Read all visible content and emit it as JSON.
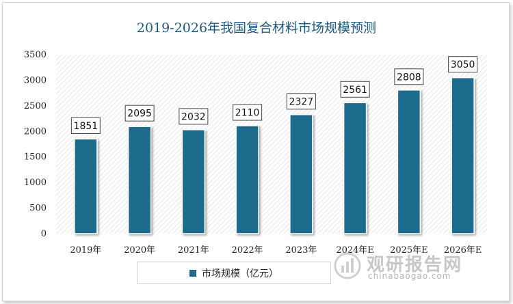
{
  "chart_data": {
    "type": "bar",
    "title": "2019-2026年我国复合材料市场规模预测",
    "categories": [
      "2019年",
      "2020年",
      "2021年",
      "2022年",
      "2023年",
      "2024年E",
      "2025年E",
      "2026年E"
    ],
    "series": [
      {
        "name": "市场规模（亿元）",
        "values": [
          1851,
          2095,
          2032,
          2110,
          2327,
          2561,
          2808,
          3050
        ]
      }
    ],
    "ylim": [
      0,
      3500
    ],
    "yticks": [
      0,
      500,
      1000,
      1500,
      2000,
      2500,
      3000,
      3500
    ],
    "grid": false,
    "legend_position": "bottom",
    "bar_color": "#1f6a8c"
  },
  "watermark": {
    "name_cn": "观研报告网",
    "url": "chinabaogao.com",
    "icon": "chart-logo-icon"
  }
}
